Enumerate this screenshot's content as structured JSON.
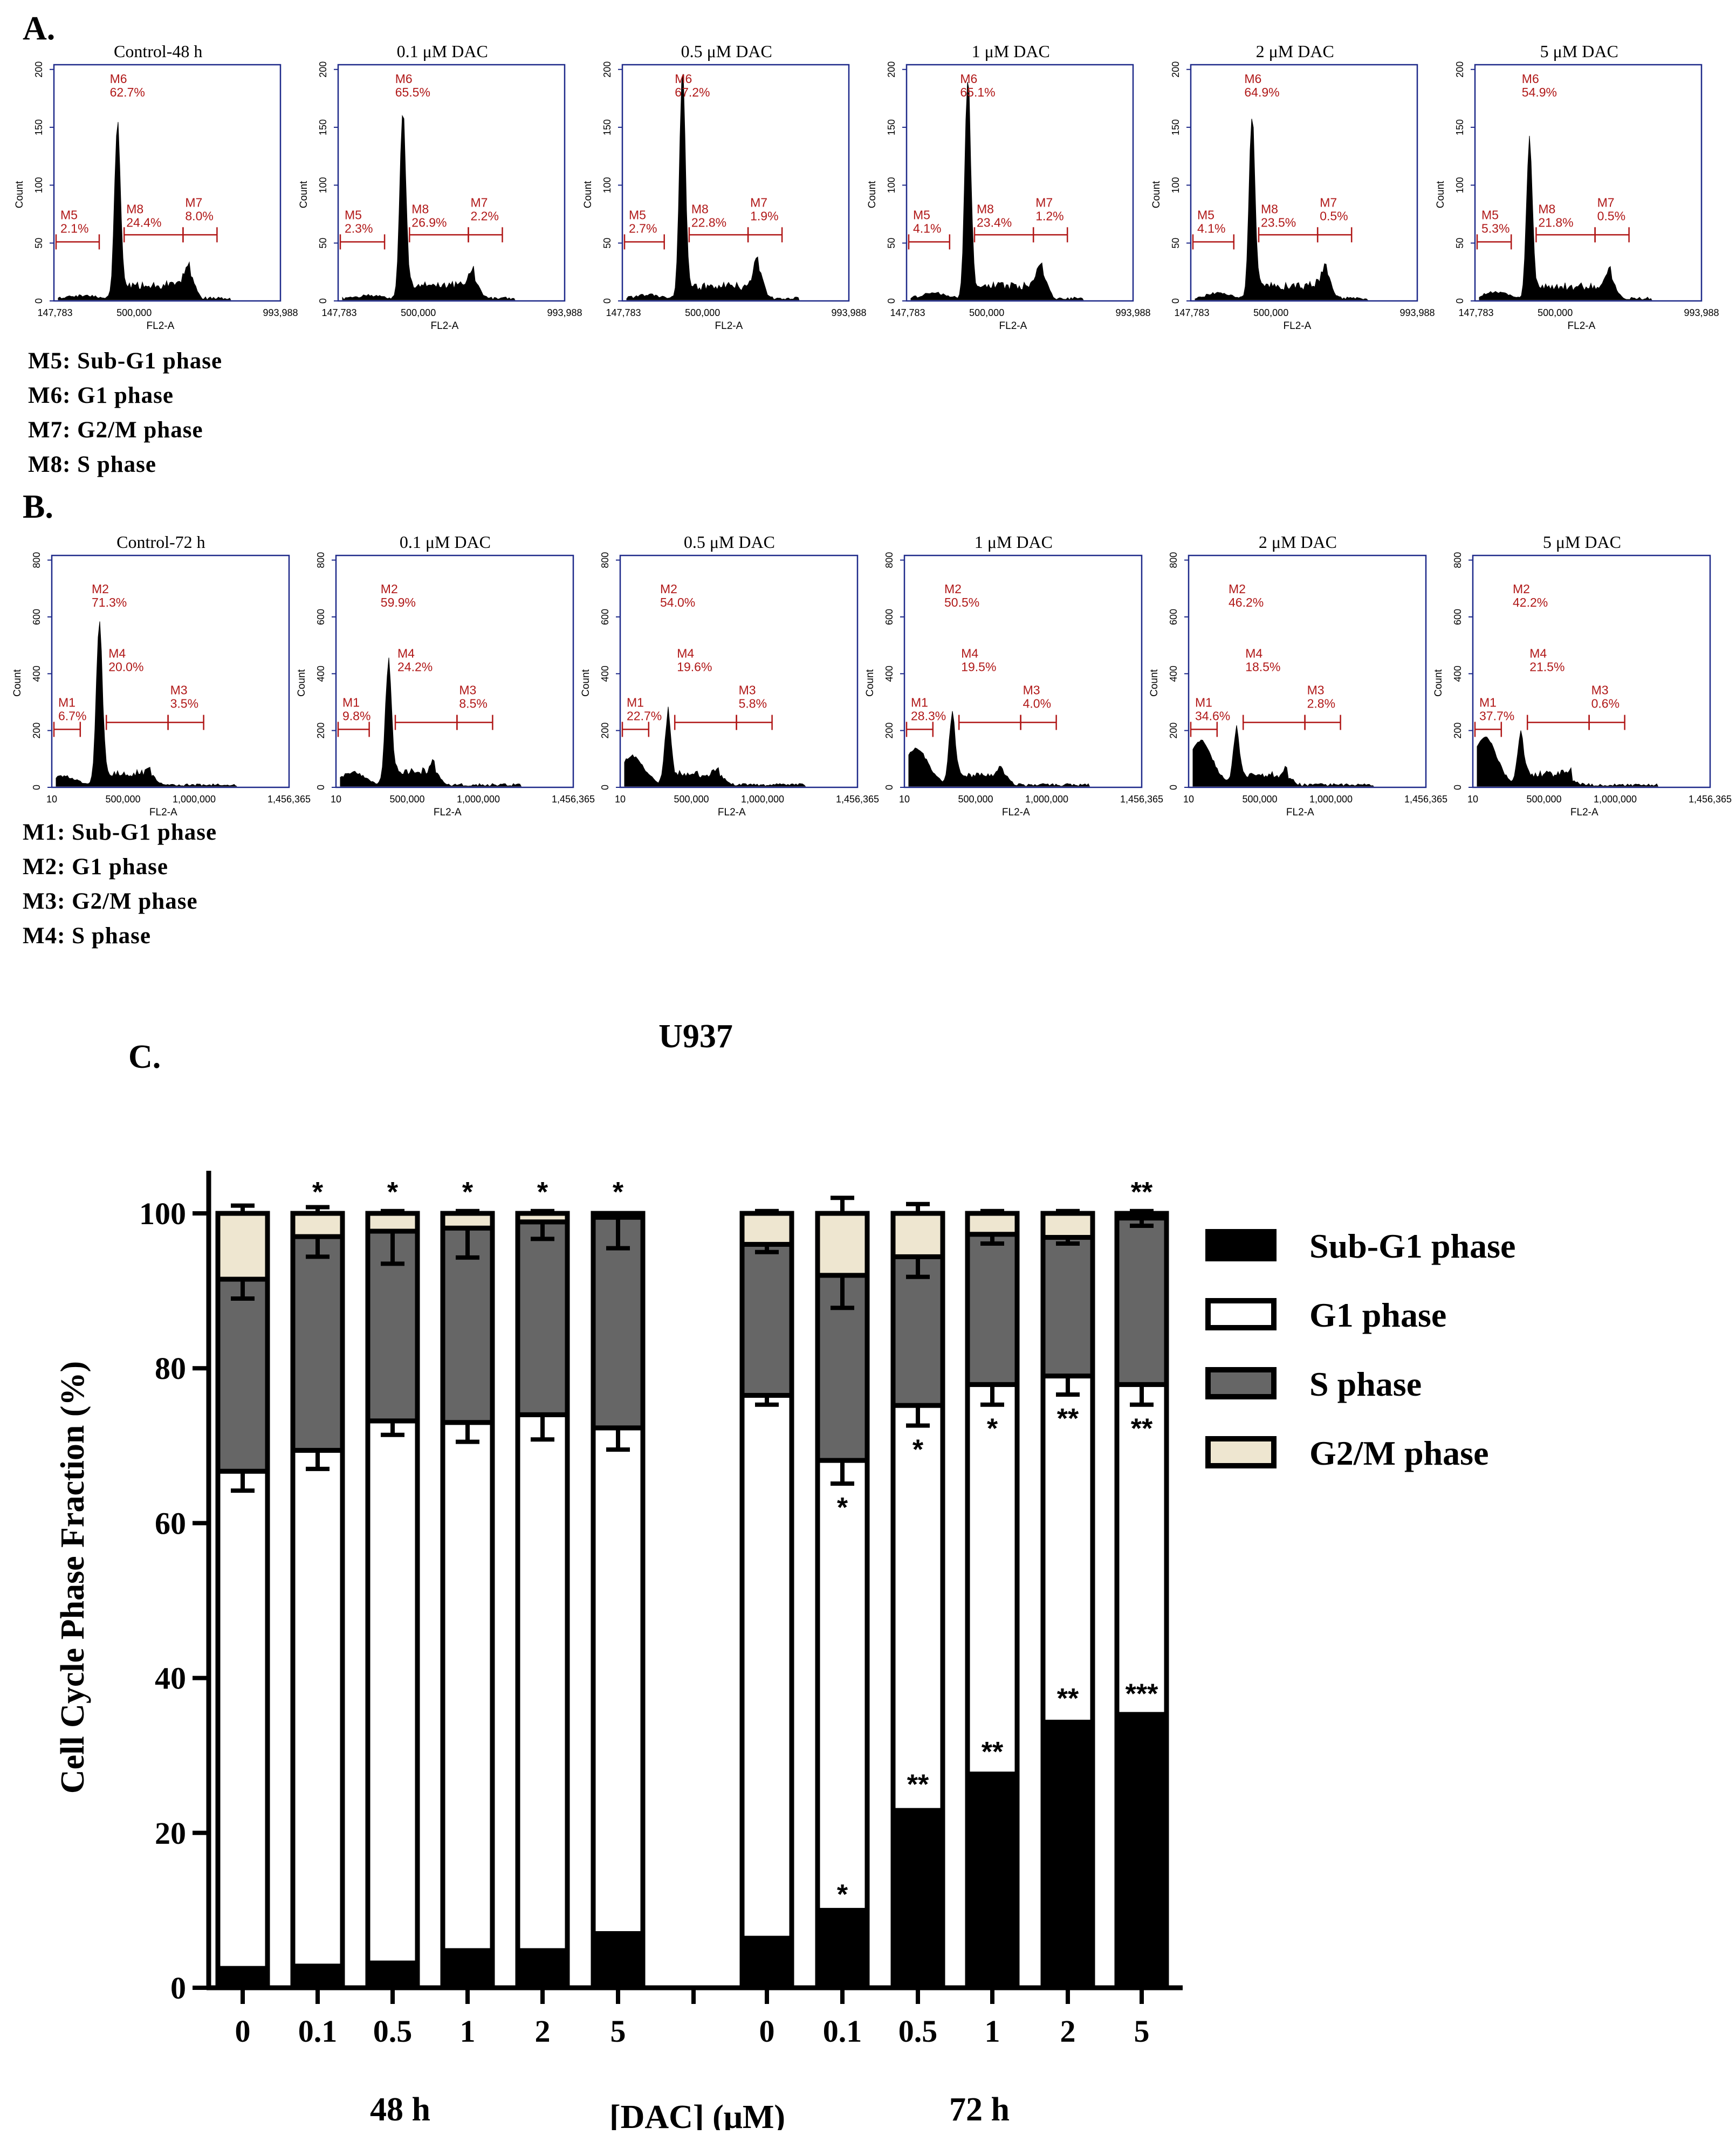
{
  "panelA": {
    "letter": "A.",
    "x_axis_label": "FL2-A",
    "y_axis_label": "Count",
    "x_ticks": [
      "147,783",
      "500,000",
      "993,988"
    ],
    "y_ticks": [
      "0",
      "50",
      "100",
      "150",
      "200"
    ],
    "legend": [
      "M5: Sub-G1 phase",
      "M6: G1 phase",
      "M7: G2/M phase",
      "M8: S phase"
    ],
    "plots": [
      {
        "title": "Control-48 h",
        "subg1": {
          "label": "M5",
          "pct": "2.1%"
        },
        "g1": {
          "label": "M6",
          "pct": "62.7%"
        },
        "s": {
          "label": "M8",
          "pct": "24.4%"
        },
        "g2m": {
          "label": "M7",
          "pct": "8.0%"
        }
      },
      {
        "title": "0.1 μM DAC",
        "subg1": {
          "label": "M5",
          "pct": "2.3%"
        },
        "g1": {
          "label": "M6",
          "pct": "65.5%"
        },
        "s": {
          "label": "M8",
          "pct": "26.9%"
        },
        "g2m": {
          "label": "M7",
          "pct": "2.2%"
        }
      },
      {
        "title": "0.5 μM DAC",
        "subg1": {
          "label": "M5",
          "pct": "2.7%"
        },
        "g1": {
          "label": "M6",
          "pct": "67.2%"
        },
        "s": {
          "label": "M8",
          "pct": "22.8%"
        },
        "g2m": {
          "label": "M7",
          "pct": "1.9%"
        }
      },
      {
        "title": "1 μM DAC",
        "subg1": {
          "label": "M5",
          "pct": "4.1%"
        },
        "g1": {
          "label": "M6",
          "pct": "65.1%"
        },
        "s": {
          "label": "M8",
          "pct": "23.4%"
        },
        "g2m": {
          "label": "M7",
          "pct": "1.2%"
        }
      },
      {
        "title": "2 μM DAC",
        "subg1": {
          "label": "M5",
          "pct": "4.1%"
        },
        "g1": {
          "label": "M6",
          "pct": "64.9%"
        },
        "s": {
          "label": "M8",
          "pct": "23.5%"
        },
        "g2m": {
          "label": "M7",
          "pct": "0.5%"
        }
      },
      {
        "title": "5 μM DAC",
        "subg1": {
          "label": "M5",
          "pct": "5.3%"
        },
        "g1": {
          "label": "M6",
          "pct": "54.9%"
        },
        "s": {
          "label": "M8",
          "pct": "21.8%"
        },
        "g2m": {
          "label": "M7",
          "pct": "0.5%"
        }
      }
    ]
  },
  "panelB": {
    "letter": "B.",
    "x_axis_label": "FL2-A",
    "y_axis_label": "Count",
    "x_ticks": [
      "10",
      "500,000",
      "1,000,000",
      "1,456,365"
    ],
    "y_ticks": [
      "0",
      "200",
      "400",
      "600",
      "800"
    ],
    "legend": [
      "M1: Sub-G1 phase",
      "M2: G1 phase",
      "M3: G2/M phase",
      "M4: S phase"
    ],
    "plots": [
      {
        "title": "Control-72 h",
        "subg1": {
          "label": "M1",
          "pct": "6.7%"
        },
        "g1": {
          "label": "M2",
          "pct": "71.3%"
        },
        "s": {
          "label": "M4",
          "pct": "20.0%"
        },
        "g2m": {
          "label": "M3",
          "pct": "3.5%"
        }
      },
      {
        "title": "0.1 μM DAC",
        "subg1": {
          "label": "M1",
          "pct": "9.8%"
        },
        "g1": {
          "label": "M2",
          "pct": "59.9%"
        },
        "s": {
          "label": "M4",
          "pct": "24.2%"
        },
        "g2m": {
          "label": "M3",
          "pct": "8.5%"
        }
      },
      {
        "title": "0.5 μM DAC",
        "subg1": {
          "label": "M1",
          "pct": "22.7%"
        },
        "g1": {
          "label": "M2",
          "pct": "54.0%"
        },
        "s": {
          "label": "M4",
          "pct": "19.6%"
        },
        "g2m": {
          "label": "M3",
          "pct": "5.8%"
        }
      },
      {
        "title": "1 μM DAC",
        "subg1": {
          "label": "M1",
          "pct": "28.3%"
        },
        "g1": {
          "label": "M2",
          "pct": "50.5%"
        },
        "s": {
          "label": "M4",
          "pct": "19.5%"
        },
        "g2m": {
          "label": "M3",
          "pct": "4.0%"
        }
      },
      {
        "title": "2 μM DAC",
        "subg1": {
          "label": "M1",
          "pct": "34.6%"
        },
        "g1": {
          "label": "M2",
          "pct": "46.2%"
        },
        "s": {
          "label": "M4",
          "pct": "18.5%"
        },
        "g2m": {
          "label": "M3",
          "pct": "2.8%"
        }
      },
      {
        "title": "5 μM DAC",
        "subg1": {
          "label": "M1",
          "pct": "37.7%"
        },
        "g1": {
          "label": "M2",
          "pct": "42.2%"
        },
        "s": {
          "label": "M4",
          "pct": "21.5%"
        },
        "g2m": {
          "label": "M3",
          "pct": "0.6%"
        }
      }
    ]
  },
  "panelC": {
    "letter": "C.",
    "title": "U937",
    "x_title": "[DAC] (μM)",
    "groups": [
      "48 h",
      "72 h"
    ]
  },
  "chart_data": {
    "type": "bar",
    "stacked": true,
    "title": "U937",
    "xlabel": "[DAC] (μM)",
    "ylabel": "Cell Cycle Phase Fraction (%)",
    "ylim": [
      0,
      105
    ],
    "yticks": [
      0,
      20,
      40,
      60,
      80,
      100
    ],
    "categories": [
      "0",
      "0.1",
      "0.5",
      "1",
      "2",
      "5",
      "0",
      "0.1",
      "0.5",
      "1",
      "2",
      "5"
    ],
    "groups": [
      {
        "name": "48 h",
        "indices": [
          0,
          1,
          2,
          3,
          4,
          5
        ]
      },
      {
        "name": "72 h",
        "indices": [
          6,
          7,
          8,
          9,
          10,
          11
        ]
      }
    ],
    "colors": {
      "Sub-G1 phase": "#000000",
      "G1 phase": "#ffffff",
      "S phase": "#666666",
      "G2/M phase": "#eee6d0"
    },
    "series": [
      {
        "name": "Sub-G1 phase",
        "values": [
          2.5,
          2.8,
          3.2,
          4.8,
          4.8,
          7.0,
          6.4,
          10.0,
          22.9,
          27.6,
          34.3,
          35.3
        ],
        "errors": [
          0,
          0,
          0,
          0,
          0,
          1.2,
          0,
          0,
          1.3,
          0.8,
          1.0,
          0.6
        ]
      },
      {
        "name": "G1 phase",
        "values": [
          64.2,
          66.6,
          70.0,
          68.2,
          69.2,
          65.3,
          70.1,
          58.1,
          52.3,
          50.3,
          44.7,
          42.6
        ],
        "errors": [
          2.5,
          2.4,
          1.8,
          2.5,
          3.2,
          2.8,
          1.2,
          3.0,
          2.6,
          2.6,
          2.4,
          2.6
        ]
      },
      {
        "name": "S phase",
        "values": [
          24.8,
          27.6,
          24.5,
          25.1,
          24.9,
          27.2,
          19.5,
          23.9,
          19.2,
          19.4,
          17.9,
          21.5
        ],
        "errors": [
          2.5,
          2.6,
          4.2,
          3.8,
          2.2,
          4.0,
          1.0,
          4.2,
          2.6,
          1.2,
          0.8,
          1.0
        ]
      },
      {
        "name": "G2/M phase",
        "values": [
          8.5,
          3.0,
          2.3,
          1.9,
          1.1,
          0.5,
          4.0,
          8.0,
          5.6,
          2.7,
          3.1,
          0.6
        ],
        "errors": [
          1.0,
          0.8,
          0.3,
          0.3,
          0.3,
          0,
          0.3,
          2.0,
          1.2,
          0.3,
          0.3,
          0.3
        ]
      }
    ],
    "annotations": [
      {
        "bar": 1,
        "position": "top",
        "text": "*"
      },
      {
        "bar": 2,
        "position": "top",
        "text": "*"
      },
      {
        "bar": 3,
        "position": "top",
        "text": "*"
      },
      {
        "bar": 4,
        "position": "top",
        "text": "*"
      },
      {
        "bar": 5,
        "position": "top",
        "text": "*"
      },
      {
        "bar": 11,
        "position": "top",
        "text": "**"
      },
      {
        "bar": 7,
        "position": "G1 phase",
        "text": "*"
      },
      {
        "bar": 8,
        "position": "G1 phase",
        "text": "*"
      },
      {
        "bar": 9,
        "position": "G1 phase",
        "text": "*"
      },
      {
        "bar": 10,
        "position": "G1 phase",
        "text": "**"
      },
      {
        "bar": 11,
        "position": "G1 phase",
        "text": "**"
      },
      {
        "bar": 7,
        "position": "Sub-G1 phase",
        "text": "*"
      },
      {
        "bar": 8,
        "position": "Sub-G1 phase",
        "text": "**"
      },
      {
        "bar": 9,
        "position": "Sub-G1 phase",
        "text": "**"
      },
      {
        "bar": 10,
        "position": "Sub-G1 phase",
        "text": "**"
      },
      {
        "bar": 11,
        "position": "Sub-G1 phase",
        "text": "***"
      }
    ]
  }
}
